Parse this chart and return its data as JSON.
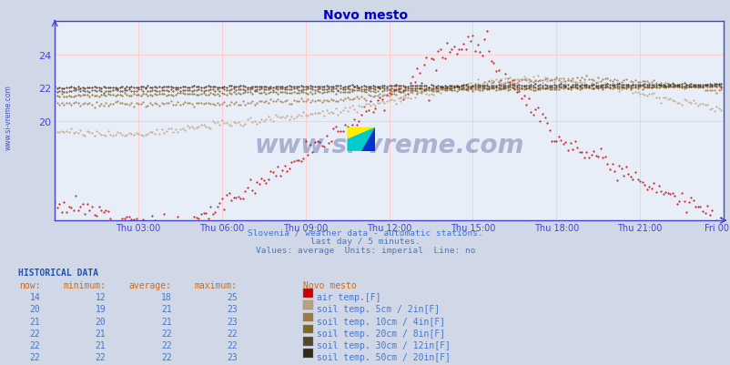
{
  "title": "Novo mesto",
  "title_color": "#0000cc",
  "bg_color": "#d0d8e8",
  "plot_bg_color": "#e8eef8",
  "grid_color": "#ffcccc",
  "axis_color": "#4444cc",
  "subtitle_lines": [
    "Slovenia / weather data - automatic stations.",
    "last day / 5 minutes.",
    "Values: average  Units: imperial  Line: no"
  ],
  "subtitle_color": "#4477cc",
  "hist_header": "HISTORICAL DATA",
  "hist_header_color": "#2255aa",
  "col_headers": [
    "now:",
    "minimum:",
    "average:",
    "maximum:",
    "Novo mesto"
  ],
  "col_header_color": "#dd6600",
  "table_data": [
    [
      14,
      12,
      18,
      25,
      "#cc0000",
      "air temp.[F]"
    ],
    [
      20,
      19,
      21,
      23,
      "#b8a080",
      "soil temp. 5cm / 2in[F]"
    ],
    [
      21,
      20,
      21,
      23,
      "#a07840",
      "soil temp. 10cm / 4in[F]"
    ],
    [
      22,
      21,
      22,
      22,
      "#806820",
      "soil temp. 20cm / 8in[F]"
    ],
    [
      22,
      21,
      22,
      22,
      "#504828",
      "soil temp. 30cm / 12in[F]"
    ],
    [
      22,
      22,
      22,
      23,
      "#302818",
      "soil temp. 50cm / 20in[F]"
    ]
  ],
  "table_text_color": "#4477cc",
  "x_ticks": [
    "Thu 03:00",
    "Thu 06:00",
    "Thu 09:00",
    "Thu 12:00",
    "Thu 15:00",
    "Thu 18:00",
    "Thu 21:00",
    "Fri 00:00"
  ],
  "y_ticks": [
    20,
    22,
    24
  ],
  "ylim": [
    14.0,
    26.0
  ],
  "xlim": [
    0,
    288
  ],
  "series_colors": [
    "#cc0000",
    "#c0a080",
    "#a07840",
    "#806820",
    "#504828",
    "#302818"
  ],
  "logo_yellow": "#ffee00",
  "logo_cyan": "#00cccc",
  "logo_blue": "#0033cc",
  "watermark_color": "#1a2a7a",
  "watermark_alpha": 0.3,
  "left_label": "www.si-vreme.com",
  "left_label_color": "#4455bb"
}
